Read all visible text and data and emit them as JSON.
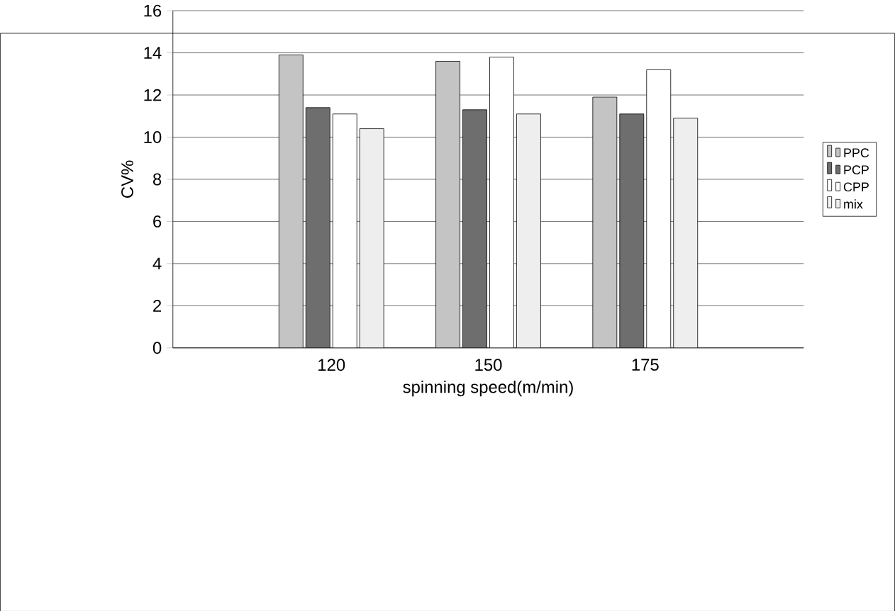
{
  "chart_data": {
    "type": "bar",
    "xlabel": "spinning speed(m/min)",
    "ylabel": "CV%",
    "categories": [
      "120",
      "150",
      "175"
    ],
    "series": [
      {
        "name": "PPC",
        "color": "#c4c4c4",
        "values": [
          13.9,
          13.6,
          11.9
        ]
      },
      {
        "name": "PCP",
        "color": "#6e6e6e",
        "values": [
          11.4,
          11.3,
          11.1
        ]
      },
      {
        "name": "CPP",
        "color": "#ffffff",
        "values": [
          11.1,
          13.8,
          13.2
        ]
      },
      {
        "name": "mix",
        "color": "#eeeeee",
        "values": [
          10.4,
          11.1,
          10.9
        ]
      }
    ],
    "ylim": [
      0,
      16
    ],
    "yticks": [
      0,
      2,
      4,
      6,
      8,
      10,
      12,
      14,
      16
    ],
    "grid": "y",
    "legend": "right"
  }
}
